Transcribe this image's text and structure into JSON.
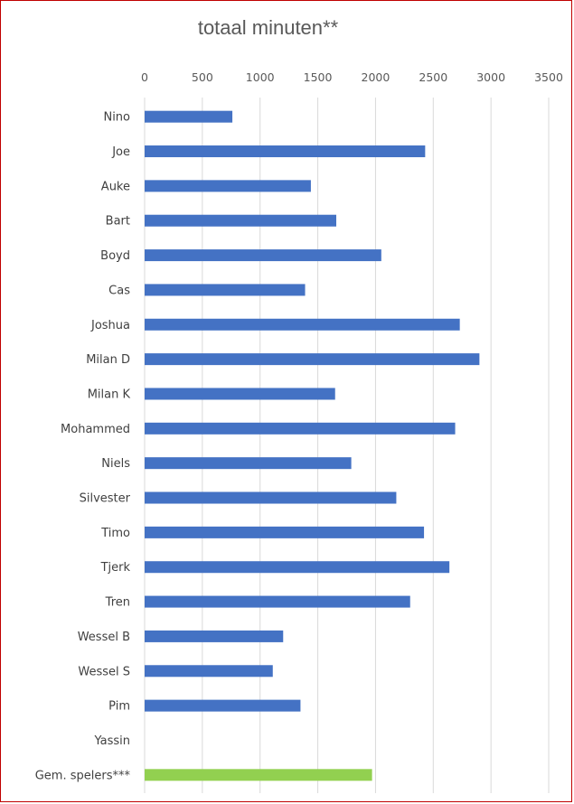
{
  "chart_data": {
    "type": "bar",
    "orientation": "horizontal",
    "title": "totaal minuten**",
    "xlim": [
      0,
      3500
    ],
    "x_ticks": [
      0,
      500,
      1000,
      1500,
      2000,
      2500,
      3000,
      3500
    ],
    "grid": true,
    "categories": [
      "Nino",
      "Joe",
      "Auke",
      "Bart",
      "Boyd",
      "Cas",
      "Joshua",
      "Milan D",
      "Milan K",
      "Mohammed",
      "Niels",
      "Silvester",
      "Timo",
      "Tjerk",
      "Tren",
      "Wessel B",
      "Wessel S",
      "Pim",
      "Yassin",
      "Gem. spelers***"
    ],
    "values": [
      760,
      2430,
      1440,
      1660,
      2050,
      1390,
      2730,
      2900,
      1650,
      2690,
      1790,
      2180,
      2420,
      2640,
      2300,
      1200,
      1110,
      1350,
      0,
      1970
    ],
    "colors": {
      "players": "#4472c4",
      "average": "#92d050"
    }
  }
}
